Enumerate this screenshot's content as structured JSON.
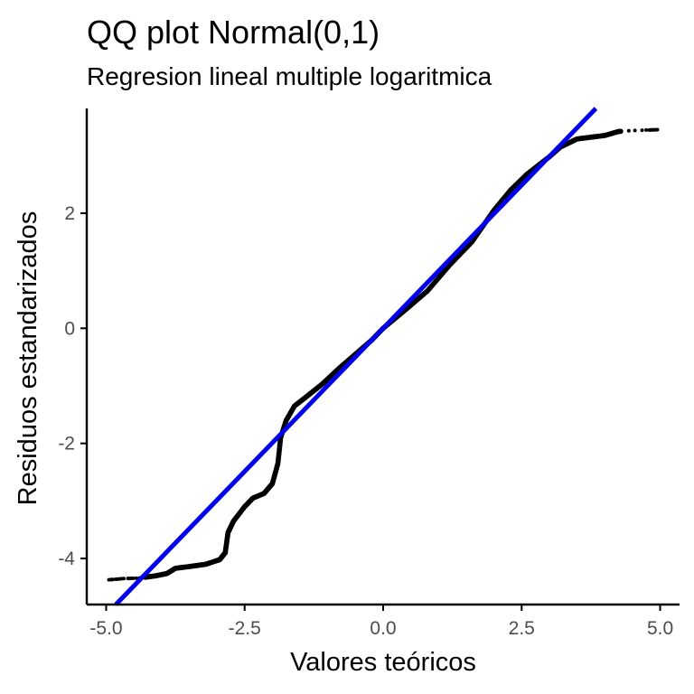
{
  "chart_data": {
    "type": "scatter",
    "title": "QQ plot Normal(0,1)",
    "subtitle": "Regresion lineal multiple logaritmica",
    "xlabel": "Valores teóricos",
    "ylabel": "Residuos estandarizados",
    "xlim": [
      -5.35,
      5.35
    ],
    "ylim": [
      -4.8,
      3.82
    ],
    "x_ticks": [
      -5,
      -2.5,
      0,
      2.5,
      5
    ],
    "x_tick_labels": [
      "-5.0",
      "-2.5",
      "0.0",
      "2.5",
      "5.0"
    ],
    "y_ticks": [
      -4,
      -2,
      0,
      2
    ],
    "y_tick_labels": [
      "-4",
      "-2",
      "0",
      "2"
    ],
    "grid": false,
    "point_color": "#000000",
    "line_color": "#0000ee",
    "reference_line": {
      "intercept": 0.0,
      "slope": 0.995
    },
    "sample_curve_points": [
      [
        -4.95,
        -4.37
      ],
      [
        -4.7,
        -4.35
      ],
      [
        -4.4,
        -4.34
      ],
      [
        -4.1,
        -4.3
      ],
      [
        -3.9,
        -4.26
      ],
      [
        -3.75,
        -4.17
      ],
      [
        -3.5,
        -4.14
      ],
      [
        -3.2,
        -4.1
      ],
      [
        -2.95,
        -4.02
      ],
      [
        -2.85,
        -3.9
      ],
      [
        -2.8,
        -3.55
      ],
      [
        -2.7,
        -3.35
      ],
      [
        -2.5,
        -3.1
      ],
      [
        -2.35,
        -2.95
      ],
      [
        -2.15,
        -2.87
      ],
      [
        -2.0,
        -2.7
      ],
      [
        -1.9,
        -2.35
      ],
      [
        -1.85,
        -1.9
      ],
      [
        -1.75,
        -1.6
      ],
      [
        -1.6,
        -1.35
      ],
      [
        -1.4,
        -1.2
      ],
      [
        -1.1,
        -0.97
      ],
      [
        -0.8,
        -0.7
      ],
      [
        -0.5,
        -0.45
      ],
      [
        -0.2,
        -0.2
      ],
      [
        0.0,
        0.0
      ],
      [
        0.4,
        0.32
      ],
      [
        0.8,
        0.65
      ],
      [
        1.2,
        1.1
      ],
      [
        1.6,
        1.5
      ],
      [
        2.0,
        2.05
      ],
      [
        2.3,
        2.4
      ],
      [
        2.6,
        2.68
      ],
      [
        3.0,
        2.98
      ],
      [
        3.2,
        3.15
      ],
      [
        3.5,
        3.29
      ],
      [
        4.0,
        3.35
      ],
      [
        4.25,
        3.42
      ],
      [
        4.6,
        3.44
      ],
      [
        4.95,
        3.45
      ]
    ]
  }
}
